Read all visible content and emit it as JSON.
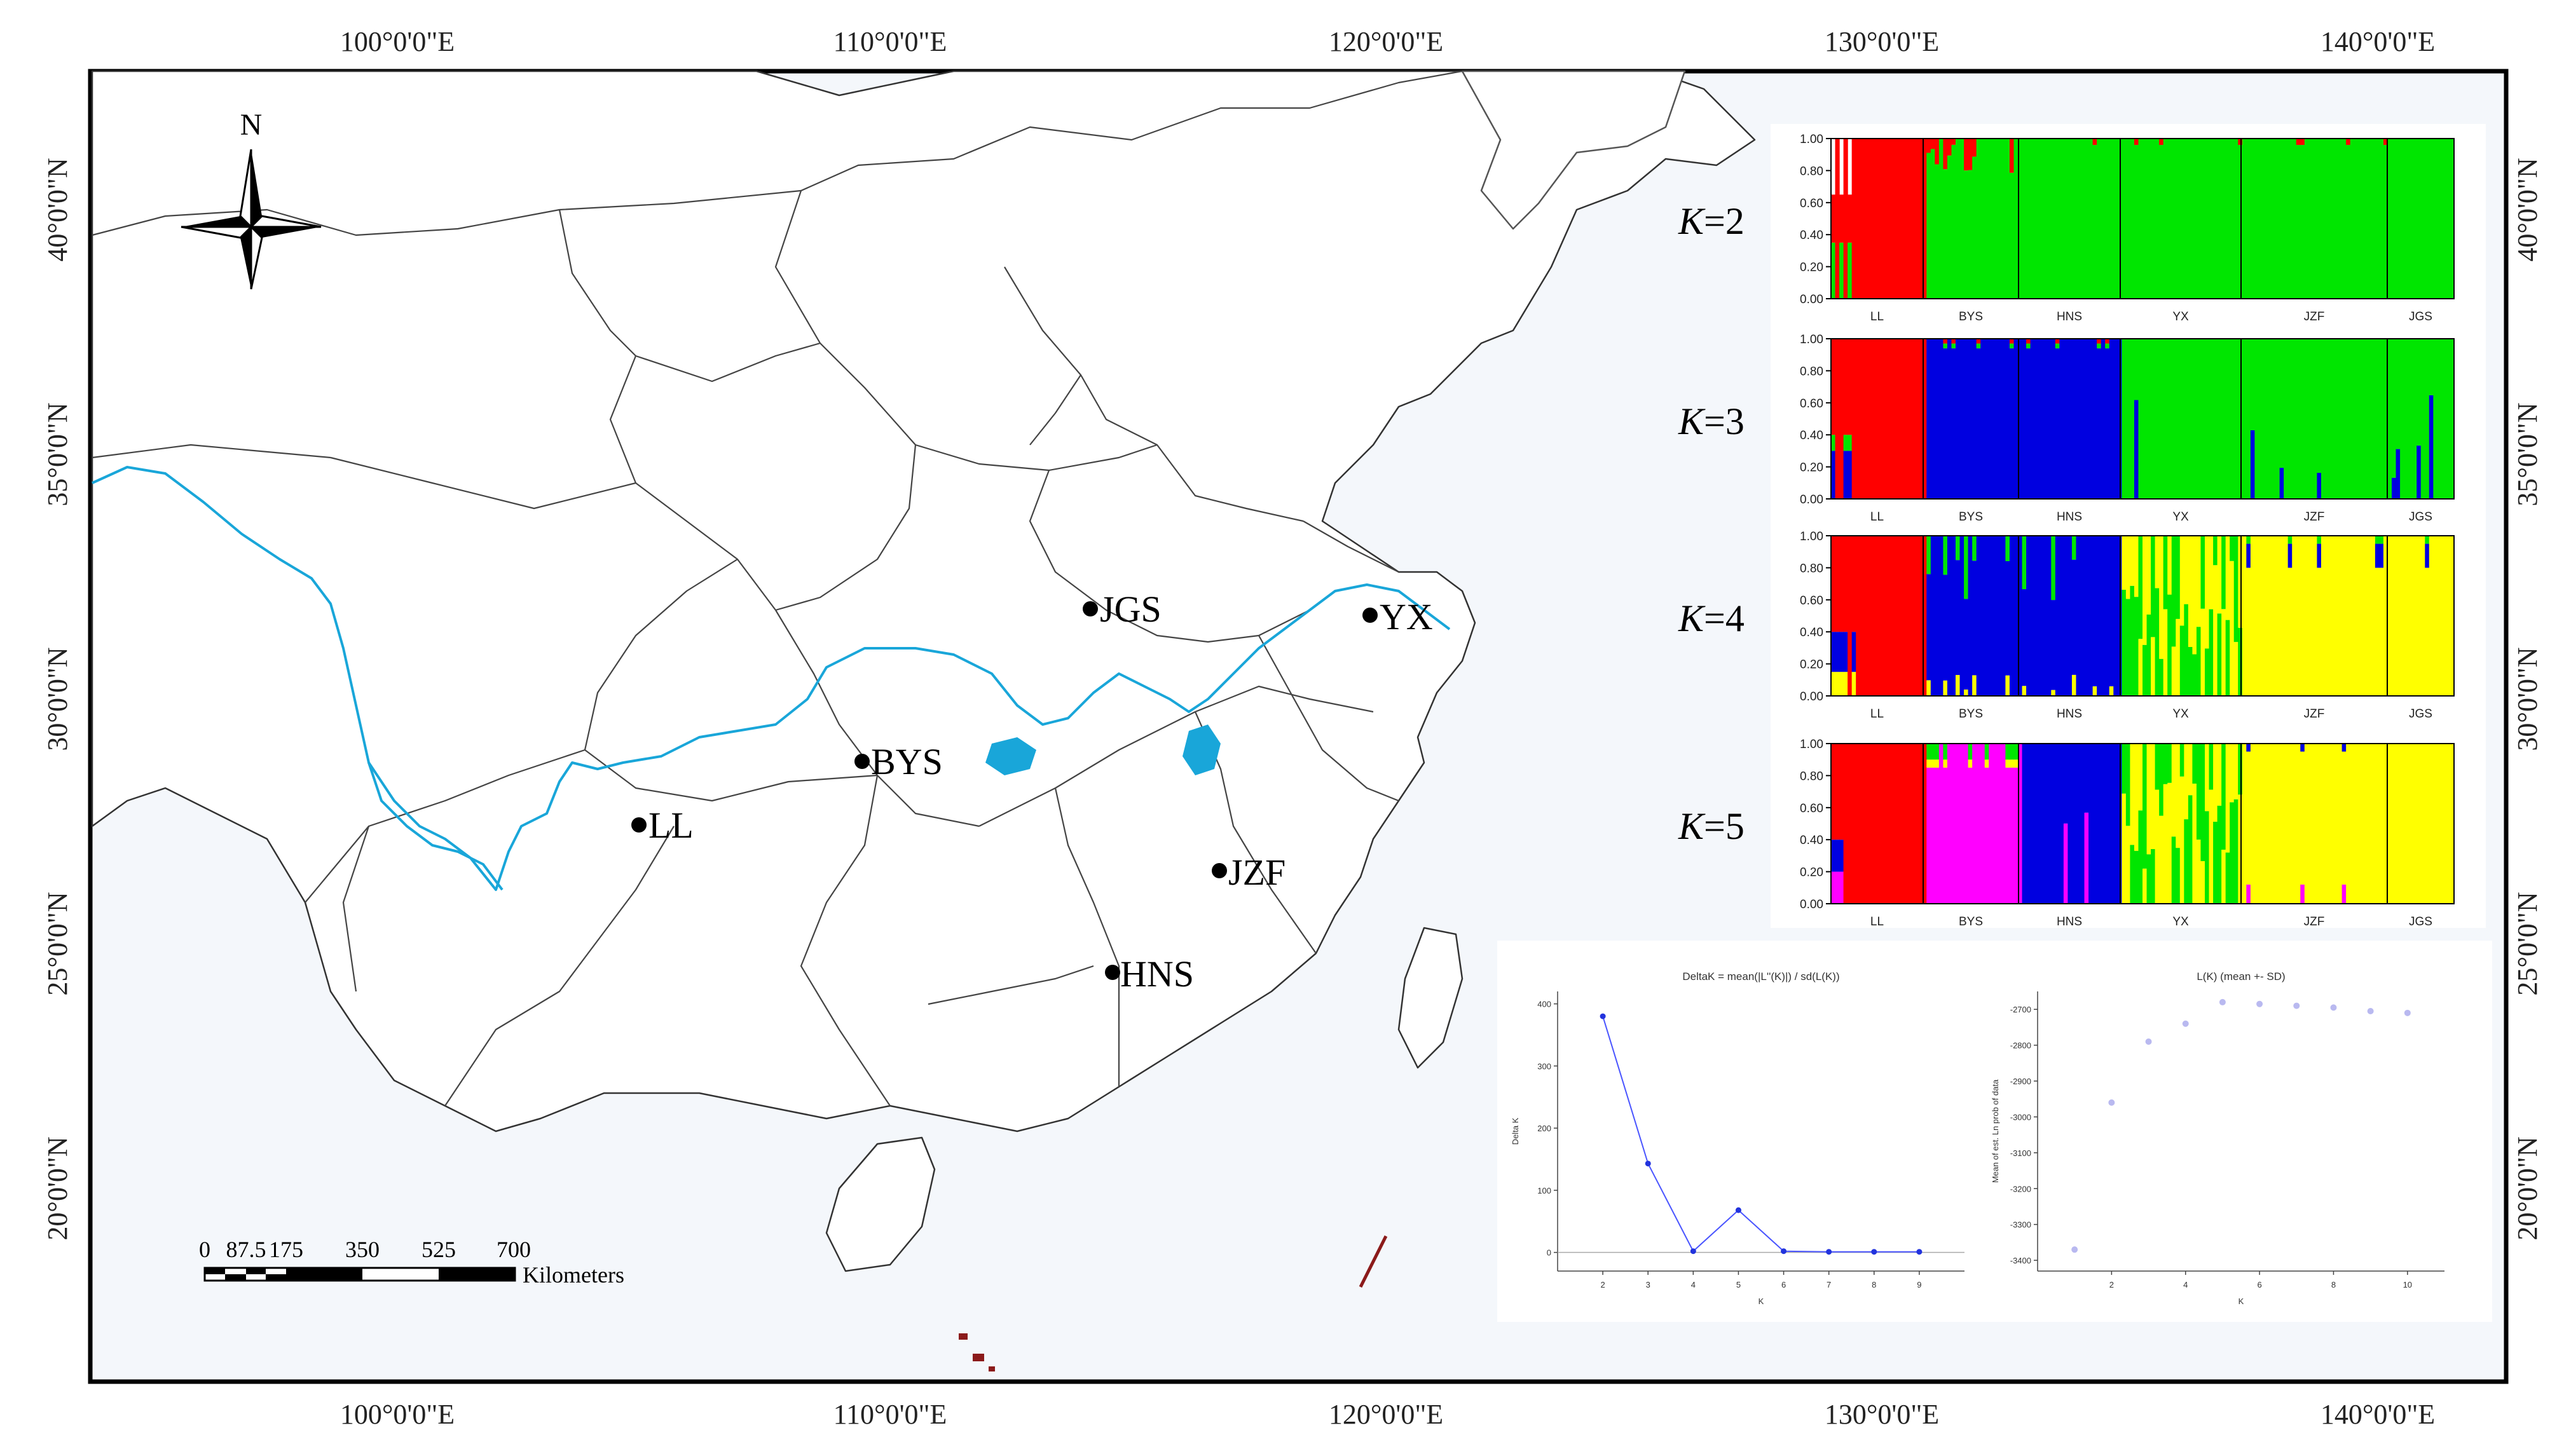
{
  "top_labels": [
    "100°0'0\"E",
    "110°0'0\"E",
    "120°0'0\"E",
    "130°0'0\"E",
    "140°0'0\"E"
  ],
  "bottom_labels": [
    "100°0'0\"E",
    "110°0'0\"E",
    "120°0'0\"E",
    "130°0'0\"E",
    "140°0'0\"E"
  ],
  "left_labels": [
    "40°0'0\"N",
    "35°0'0\"N",
    "30°0'0\"N",
    "25°0'0\"N",
    "20°0'0\"N"
  ],
  "right_labels": [
    "40°0'0\"N",
    "35°0'0\"N",
    "30°0'0\"N",
    "25°0'0\"N",
    "20°0'0\"N"
  ],
  "north_label": "N",
  "sites": [
    {
      "code": "JGS"
    },
    {
      "code": "YX"
    },
    {
      "code": "BYS"
    },
    {
      "code": "LL"
    },
    {
      "code": "JZF"
    },
    {
      "code": "HNS"
    }
  ],
  "scale_bar": {
    "ticks": [
      "0",
      "87.5",
      "175",
      "350",
      "525",
      "700"
    ],
    "unit": "Kilometers"
  },
  "structure": {
    "populations": [
      "LL",
      "BYS",
      "HNS",
      "YX",
      "JZF",
      "JGS"
    ],
    "yticks": [
      "0.00",
      "0.20",
      "0.40",
      "0.60",
      "0.80",
      "1.00"
    ],
    "panels": [
      {
        "k_label": "K",
        "k_eq": "=2"
      },
      {
        "k_label": "K",
        "k_eq": "=3"
      },
      {
        "k_label": "K",
        "k_eq": "=4"
      },
      {
        "k_label": "K",
        "k_eq": "=5"
      }
    ],
    "colors": {
      "red": "#ff0000",
      "green": "#00e600",
      "blue": "#0000e0",
      "yellow": "#ffff00",
      "magenta": "#ff00ff"
    }
  },
  "chart_data": [
    {
      "type": "line",
      "title": "DeltaK = mean(|L''(K)|) / sd(L(K))",
      "xlabel": "K",
      "ylabel": "Delta K",
      "x": [
        2,
        3,
        4,
        5,
        6,
        7,
        8,
        9
      ],
      "values": [
        380,
        143,
        2,
        68,
        2,
        1,
        1,
        1
      ],
      "xticks": [
        "2",
        "3",
        "4",
        "5",
        "6",
        "7",
        "8",
        "9"
      ],
      "yticks": [
        "0",
        "100",
        "200",
        "300",
        "400"
      ],
      "ylim": [
        -30,
        420
      ]
    },
    {
      "type": "scatter",
      "title": "L(K) (mean +- SD)",
      "xlabel": "K",
      "ylabel": "Mean of est. Ln prob of data",
      "x": [
        1,
        2,
        3,
        4,
        5,
        6,
        7,
        8,
        9,
        10
      ],
      "values": [
        -3370,
        -2960,
        -2790,
        -2740,
        -2680,
        -2685,
        -2690,
        -2695,
        -2705,
        -2710
      ],
      "xticks": [
        "2",
        "4",
        "6",
        "8",
        "10"
      ],
      "yticks": [
        "-2700",
        "-2800",
        "-2900",
        "-3000",
        "-3100",
        "-3200",
        "-3300",
        "-3400"
      ],
      "ylim": [
        -3430,
        -2650
      ]
    }
  ]
}
